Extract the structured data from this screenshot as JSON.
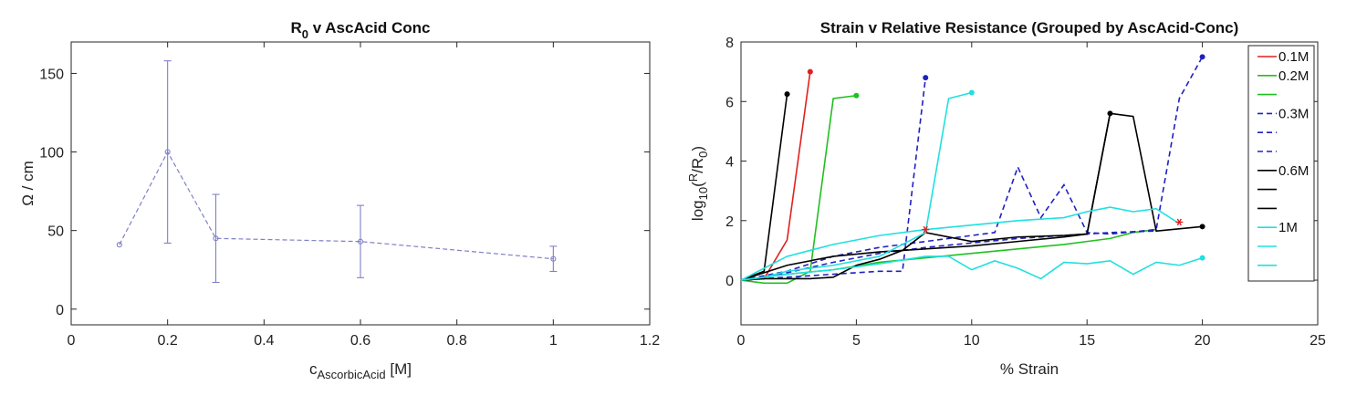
{
  "chart_data": [
    {
      "type": "line",
      "title": "R",
      "title_sub": "0",
      "title_rest": " v AscAcid Conc",
      "xlabel": "c",
      "xlabel_sub": "AscorbicAcid",
      "xlabel_rest": " [M]",
      "ylabel": "Ω / cm",
      "xlim": [
        0,
        1.2
      ],
      "ylim": [
        -10,
        170
      ],
      "xticks": [
        "0",
        "0.2",
        "0.4",
        "0.6",
        "0.8",
        "1",
        "1.2"
      ],
      "yticks": [
        "0",
        "50",
        "100",
        "150"
      ],
      "color": "#8080c8",
      "points": [
        {
          "x": 0.1,
          "y": 41,
          "err": 0
        },
        {
          "x": 0.2,
          "y": 100,
          "err": 58
        },
        {
          "x": 0.3,
          "y": 45,
          "err": 28
        },
        {
          "x": 0.6,
          "y": 43,
          "err": 23
        },
        {
          "x": 1.0,
          "y": 32,
          "err": 8
        }
      ]
    },
    {
      "type": "line",
      "title": "Strain v Relative Resistance (Grouped by AscAcid-Conc)",
      "xlabel": "% Strain",
      "ylabel_parts": [
        "log",
        "10",
        "(",
        "R",
        "/",
        "R",
        "0",
        ")"
      ],
      "xlim": [
        0,
        25
      ],
      "ylim": [
        -1.5,
        8
      ],
      "xticks": [
        "0",
        "5",
        "10",
        "15",
        "20",
        "25"
      ],
      "yticks": [
        "0",
        "2",
        "4",
        "6",
        "8"
      ],
      "legend_position": "outside-right",
      "legend_labels": [
        "0.1M",
        "0.2M",
        "",
        "0.3M",
        "",
        "",
        "0.6M",
        "",
        "",
        "1M",
        "",
        ""
      ],
      "series": [
        {
          "color": "#e02020",
          "dash": false,
          "x": [
            0,
            1,
            2,
            3
          ],
          "y": [
            0,
            0.05,
            1.35,
            7.0
          ],
          "end_marker": "dot"
        },
        {
          "color": "#20c020",
          "dash": false,
          "x": [
            0,
            1,
            2,
            3,
            4,
            5
          ],
          "y": [
            0,
            -0.1,
            -0.1,
            0.3,
            6.1,
            6.2
          ],
          "end_marker": "dot"
        },
        {
          "color": "#20c020",
          "dash": false,
          "x": [
            0,
            1,
            2,
            4,
            6,
            8,
            10,
            12,
            14,
            15,
            16,
            17,
            18
          ],
          "y": [
            0,
            0.1,
            0.2,
            0.35,
            0.6,
            0.75,
            0.9,
            1.05,
            1.2,
            1.3,
            1.4,
            1.6,
            1.7
          ],
          "end_marker": "none"
        },
        {
          "color": "#2020c0",
          "dash": true,
          "x": [
            0,
            1,
            2,
            3,
            4,
            5,
            6,
            7,
            8
          ],
          "y": [
            0,
            0.05,
            0.1,
            0.15,
            0.2,
            0.25,
            0.3,
            0.3,
            6.8
          ],
          "end_marker": "dot"
        },
        {
          "color": "#2020c0",
          "dash": true,
          "x": [
            0,
            2,
            4,
            6,
            8,
            10,
            11,
            12,
            13,
            14,
            15,
            16,
            18,
            19,
            20
          ],
          "y": [
            0,
            0.3,
            0.8,
            1.1,
            1.3,
            1.5,
            1.6,
            3.8,
            2.1,
            3.2,
            1.6,
            1.55,
            1.7,
            6.1,
            7.5
          ],
          "end_marker": "dot"
        },
        {
          "color": "#2020c0",
          "dash": true,
          "x": [
            0,
            2,
            4,
            6,
            8,
            10,
            12,
            14,
            16,
            18
          ],
          "y": [
            0,
            0.25,
            0.6,
            0.9,
            1.1,
            1.25,
            1.4,
            1.5,
            1.6,
            1.65
          ],
          "end_marker": "none"
        },
        {
          "color": "#000000",
          "dash": false,
          "x": [
            0,
            1,
            2
          ],
          "y": [
            0,
            0.3,
            6.25
          ],
          "end_marker": "dot"
        },
        {
          "color": "#000000",
          "dash": false,
          "x": [
            0,
            1,
            2,
            3,
            4,
            5,
            6,
            7,
            8,
            10,
            12,
            14,
            15,
            16,
            17,
            18,
            20
          ],
          "y": [
            0,
            0.05,
            0.05,
            0.05,
            0.1,
            0.5,
            0.7,
            1.0,
            1.6,
            1.3,
            1.45,
            1.5,
            1.55,
            5.6,
            5.5,
            1.65,
            1.8
          ],
          "end_marker": "dot"
        },
        {
          "color": "#000000",
          "dash": false,
          "x": [
            0,
            2,
            4,
            6,
            8,
            10,
            12,
            14,
            15,
            16
          ],
          "y": [
            0,
            0.5,
            0.8,
            0.95,
            1.05,
            1.15,
            1.3,
            1.45,
            1.55,
            5.6
          ],
          "end_marker": "dot"
        },
        {
          "color": "#20e0e0",
          "dash": false,
          "x": [
            0,
            1,
            2,
            4,
            6,
            8,
            9,
            10
          ],
          "y": [
            0,
            0.1,
            0.3,
            0.5,
            0.8,
            1.6,
            6.1,
            6.3
          ],
          "end_marker": "dot"
        },
        {
          "color": "#20e0e0",
          "dash": false,
          "x": [
            0,
            1,
            2,
            4,
            6,
            8,
            10,
            12,
            14,
            15,
            16,
            17,
            18,
            19
          ],
          "y": [
            0,
            0.4,
            0.8,
            1.2,
            1.5,
            1.7,
            1.85,
            2.0,
            2.1,
            2.3,
            2.45,
            2.3,
            2.4,
            1.9
          ],
          "end_marker": "star"
        },
        {
          "color": "#20e0e0",
          "dash": false,
          "x": [
            0,
            2,
            4,
            6,
            8,
            9,
            10,
            11,
            12,
            13,
            14,
            15,
            16,
            17,
            18,
            19,
            20
          ],
          "y": [
            0,
            0.2,
            0.35,
            0.55,
            0.8,
            0.8,
            0.35,
            0.65,
            0.4,
            0.05,
            0.6,
            0.55,
            0.65,
            0.2,
            0.6,
            0.5,
            0.75
          ],
          "end_marker": "dot"
        }
      ],
      "stars": [
        {
          "x": 8,
          "y": 1.7
        },
        {
          "x": 19,
          "y": 1.95
        }
      ]
    }
  ]
}
